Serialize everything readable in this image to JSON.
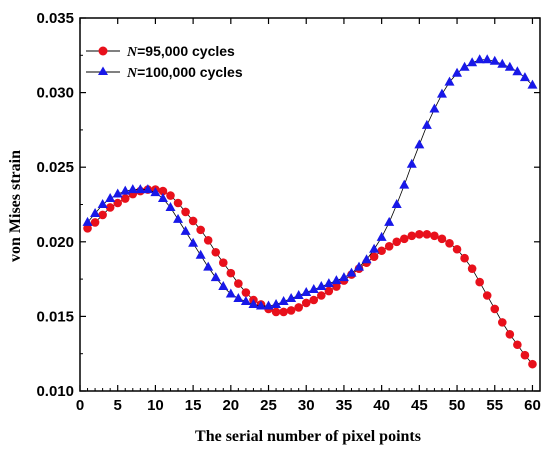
{
  "chart_data": {
    "type": "line",
    "xlabel": "The serial number of pixel points",
    "ylabel": "von Mises strain",
    "xlim": [
      0,
      61
    ],
    "ylim": [
      0.01,
      0.035
    ],
    "xticks": [
      "0",
      "5",
      "10",
      "15",
      "20",
      "25",
      "30",
      "35",
      "40",
      "45",
      "50",
      "55",
      "60"
    ],
    "yticks": [
      "0.010",
      "0.015",
      "0.020",
      "0.025",
      "0.030",
      "0.035"
    ],
    "legend_position": "top-left",
    "x": [
      1,
      2,
      3,
      4,
      5,
      6,
      7,
      8,
      9,
      10,
      11,
      12,
      13,
      14,
      15,
      16,
      17,
      18,
      19,
      20,
      21,
      22,
      23,
      24,
      25,
      26,
      27,
      28,
      29,
      30,
      31,
      32,
      33,
      34,
      35,
      36,
      37,
      38,
      39,
      40,
      41,
      42,
      43,
      44,
      45,
      46,
      47,
      48,
      49,
      50,
      51,
      52,
      53,
      54,
      55,
      56,
      57,
      58,
      59,
      60
    ],
    "series": [
      {
        "name_prefix": "N",
        "name_rest": "=95,000 cycles",
        "color": "#e8101b",
        "marker": "circle",
        "values": [
          0.0209,
          0.0213,
          0.0218,
          0.0223,
          0.0226,
          0.0229,
          0.0232,
          0.0234,
          0.0235,
          0.0235,
          0.0234,
          0.0231,
          0.0226,
          0.022,
          0.0214,
          0.0208,
          0.0201,
          0.0193,
          0.0186,
          0.0179,
          0.0172,
          0.0166,
          0.0161,
          0.0158,
          0.0155,
          0.0153,
          0.0153,
          0.0154,
          0.0156,
          0.0159,
          0.0161,
          0.0164,
          0.0167,
          0.017,
          0.0174,
          0.0178,
          0.0182,
          0.0186,
          0.019,
          0.0194,
          0.0197,
          0.02,
          0.0202,
          0.0204,
          0.0205,
          0.0205,
          0.0204,
          0.0202,
          0.0199,
          0.0195,
          0.0189,
          0.0182,
          0.0173,
          0.0164,
          0.0155,
          0.0146,
          0.0138,
          0.0131,
          0.0124,
          0.0118
        ]
      },
      {
        "name_prefix": "N",
        "name_rest": "=100,000 cycles",
        "color": "#1818e8",
        "marker": "triangle",
        "values": [
          0.0213,
          0.0219,
          0.0225,
          0.0229,
          0.0232,
          0.0234,
          0.0235,
          0.0235,
          0.0235,
          0.0233,
          0.0229,
          0.0223,
          0.0215,
          0.0207,
          0.0199,
          0.0191,
          0.0183,
          0.0176,
          0.017,
          0.0165,
          0.0162,
          0.016,
          0.0158,
          0.0157,
          0.0157,
          0.0158,
          0.016,
          0.0162,
          0.0164,
          0.0166,
          0.0168,
          0.017,
          0.0172,
          0.0174,
          0.0176,
          0.0179,
          0.0183,
          0.0188,
          0.0195,
          0.0203,
          0.0213,
          0.0225,
          0.0238,
          0.0252,
          0.0265,
          0.0278,
          0.0289,
          0.0299,
          0.0307,
          0.0313,
          0.0317,
          0.032,
          0.0322,
          0.0322,
          0.0321,
          0.0319,
          0.0317,
          0.0314,
          0.031,
          0.0305
        ]
      }
    ]
  }
}
